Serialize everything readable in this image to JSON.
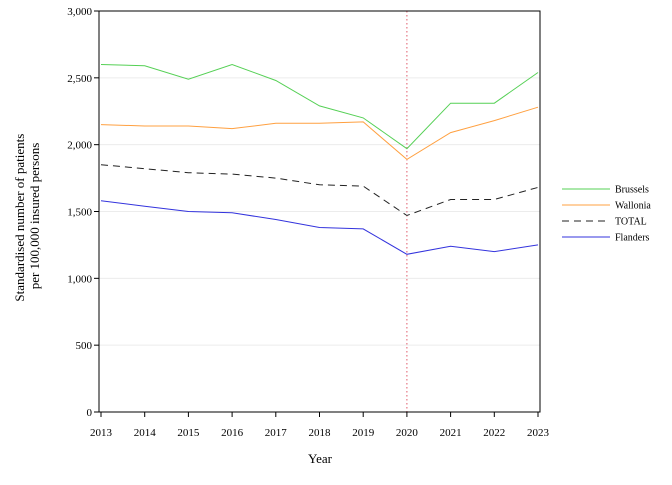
{
  "chart_data": {
    "type": "line",
    "xlabel": "Year",
    "ylabel_lines": [
      "Standardised number of patients",
      "per 100,000 insured persons"
    ],
    "x": [
      2013,
      2014,
      2015,
      2016,
      2017,
      2018,
      2019,
      2020,
      2021,
      2022,
      2023
    ],
    "x_tick_labels": [
      "2013",
      "2014",
      "2015",
      "2016",
      "2017",
      "2018",
      "2019",
      "2020",
      "2021",
      "2022",
      "2023"
    ],
    "ylim": [
      0,
      3000
    ],
    "y_ticks": [
      0,
      500,
      1000,
      1500,
      2000,
      2500,
      3000
    ],
    "y_tick_labels": [
      "0",
      "500",
      "1,000",
      "1,500",
      "2,000",
      "2,500",
      "3,000"
    ],
    "grid": "horizontal",
    "reference_line": {
      "x": 2020,
      "color": "#e05a6a",
      "style": "dotted"
    },
    "legend_position": "right",
    "series": [
      {
        "name": "Brussels",
        "color": "#55d055",
        "dash": "solid",
        "values": [
          2600,
          2590,
          2490,
          2600,
          2480,
          2290,
          2200,
          1970,
          2310,
          2310,
          2540
        ]
      },
      {
        "name": "Wallonia",
        "color": "#ffa040",
        "dash": "solid",
        "values": [
          2150,
          2140,
          2140,
          2120,
          2160,
          2160,
          2170,
          1890,
          2090,
          2180,
          2280
        ]
      },
      {
        "name": "TOTAL",
        "color": "#222222",
        "dash": "dashed",
        "values": [
          1850,
          1820,
          1790,
          1780,
          1750,
          1700,
          1690,
          1470,
          1590,
          1590,
          1680
        ]
      },
      {
        "name": "Flanders",
        "color": "#3333dd",
        "dash": "solid",
        "values": [
          1580,
          1540,
          1500,
          1490,
          1440,
          1380,
          1370,
          1180,
          1240,
          1200,
          1250
        ]
      }
    ]
  }
}
